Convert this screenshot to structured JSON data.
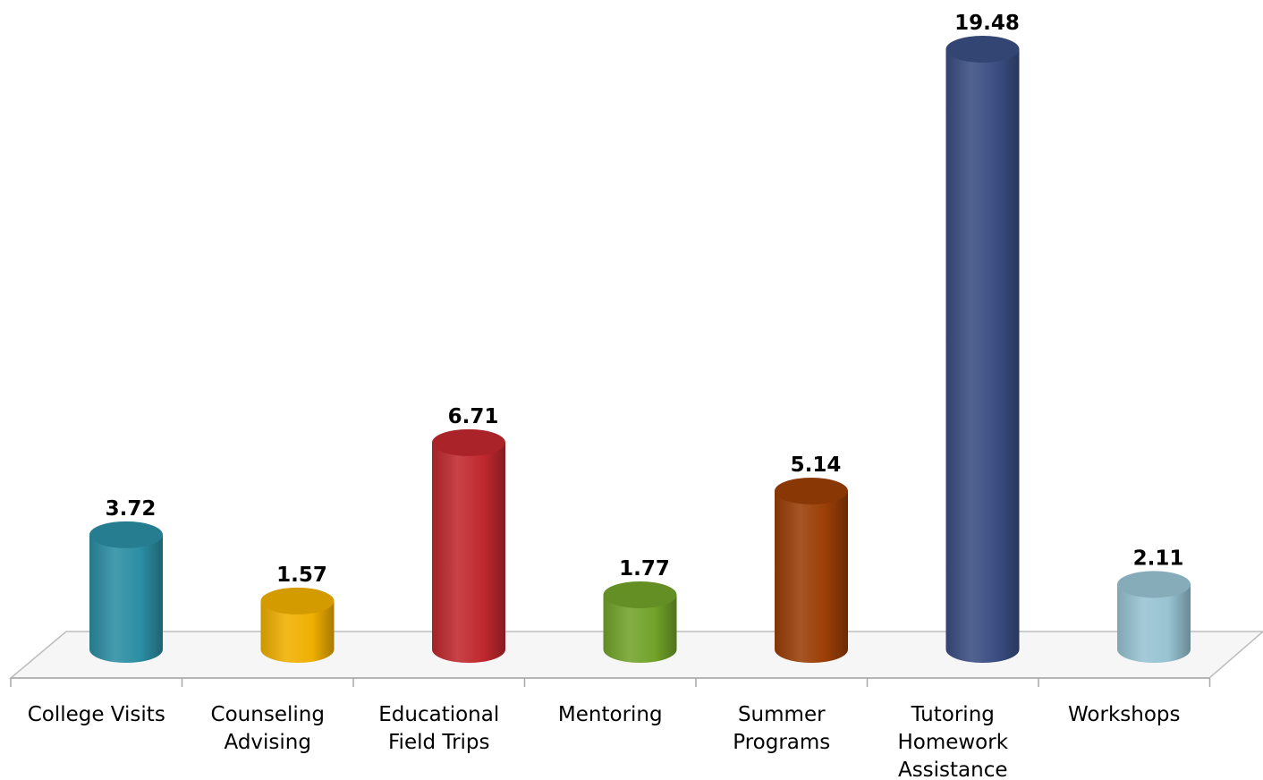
{
  "chart_data": {
    "type": "bar",
    "style": "3d-cylinder",
    "categories": [
      [
        "College Visits"
      ],
      [
        "Counseling",
        "Advising"
      ],
      [
        "Educational",
        "Field Trips"
      ],
      [
        "Mentoring"
      ],
      [
        "Summer",
        "Programs"
      ],
      [
        "Tutoring",
        "Homework",
        "Assistance"
      ],
      [
        "Workshops"
      ]
    ],
    "values": [
      3.72,
      1.57,
      6.71,
      1.77,
      5.14,
      19.48,
      2.11
    ],
    "value_labels": [
      "3.72",
      "1.57",
      "6.71",
      "1.77",
      "5.14",
      "19.48",
      "2.11"
    ],
    "colors": [
      "#2b8ea3",
      "#f0b000",
      "#c0282e",
      "#72a32a",
      "#9a3e06",
      "#3a4e82",
      "#98c3d2"
    ],
    "ylim": [
      0,
      19.48
    ],
    "grid": false,
    "legend": false,
    "title": "",
    "xlabel": "",
    "ylabel": ""
  }
}
